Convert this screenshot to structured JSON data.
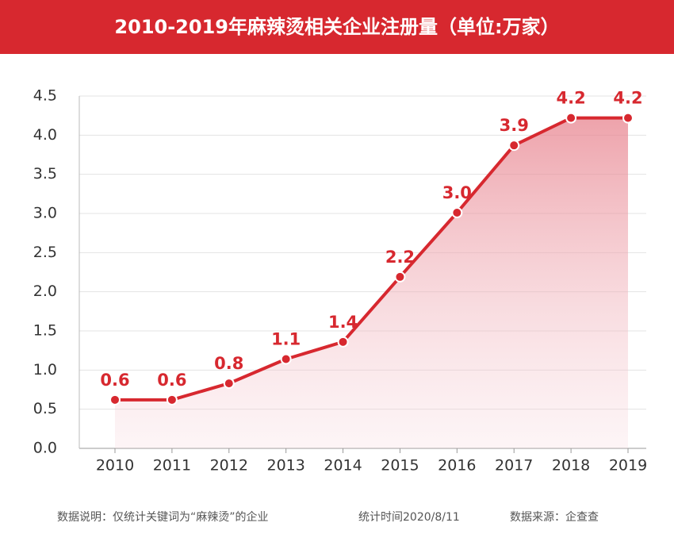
{
  "chart_data": {
    "type": "line",
    "title": "2010-2019年麻辣烫相关企业注册量（单位:万家）",
    "categories": [
      "2010",
      "2011",
      "2012",
      "2013",
      "2014",
      "2015",
      "2016",
      "2017",
      "2018",
      "2019"
    ],
    "series": [
      {
        "name": "麻辣烫相关企业注册量",
        "color": "#d7282f",
        "values": [
          0.62,
          0.62,
          0.83,
          1.14,
          1.36,
          2.19,
          3.01,
          3.87,
          4.22,
          4.22
        ],
        "value_labels": [
          "0.6",
          "0.6",
          "0.8",
          "1.1",
          "1.4",
          "2.2",
          "3.0",
          "3.9",
          "4.2",
          "4.2"
        ]
      }
    ],
    "ylim": [
      0,
      4.5
    ],
    "yticks": [
      {
        "value": 0,
        "label": "0.0"
      },
      0.5,
      {
        "value": 1,
        "label": "1.0"
      },
      1.5,
      {
        "value": 2,
        "label": "2.0"
      },
      2.5,
      {
        "value": 3,
        "label": "3.0"
      },
      3.5,
      {
        "value": 4,
        "label": "4.0"
      },
      4.5
    ],
    "grid": true,
    "notes": [
      "数据说明：仅统计关键词为“麻辣烫”的企业",
      "统计时间2020/8/11",
      "数据来源：企查查"
    ]
  }
}
